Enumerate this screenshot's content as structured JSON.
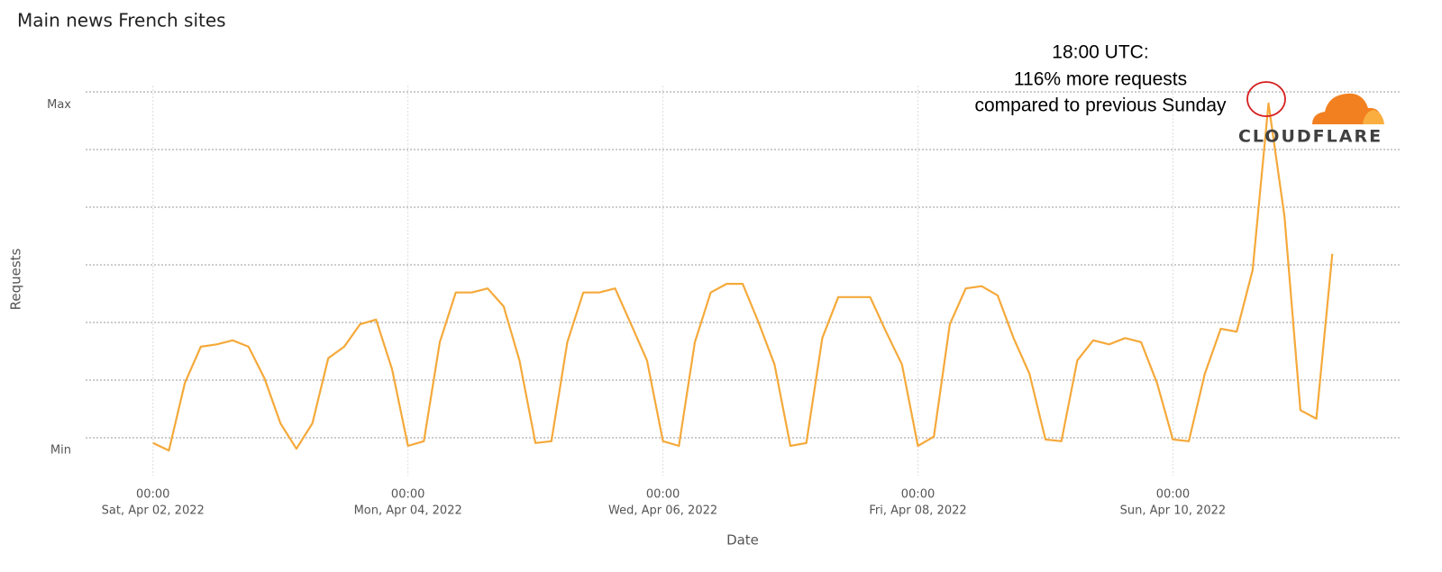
{
  "chart_data": {
    "type": "line",
    "title": "Main news French sites",
    "ylabel": "Requests",
    "xlabel": "Date",
    "annotation": [
      "18:00 UTC:",
      "116% more requests",
      "compared to previous Sunday"
    ],
    "logo_text": "CLOUDFLARE",
    "color": "#f5a93a",
    "grid": true,
    "xlim": [
      "2022-04-01T12:00",
      "2022-04-11T18:00"
    ],
    "xticks": [
      {
        "value": "2022-04-02T00:00",
        "label": [
          "00:00",
          "Sat, Apr 02, 2022"
        ]
      },
      {
        "value": "2022-04-04T00:00",
        "label": [
          "00:00",
          "Mon, Apr 04, 2022"
        ]
      },
      {
        "value": "2022-04-06T00:00",
        "label": [
          "00:00",
          "Wed, Apr 06, 2022"
        ]
      },
      {
        "value": "2022-04-08T00:00",
        "label": [
          "00:00",
          "Fri, Apr 08, 2022"
        ]
      },
      {
        "value": "2022-04-10T00:00",
        "label": [
          "00:00",
          "Sun, Apr 10, 2022"
        ]
      }
    ],
    "ylim": [
      -0.5,
      6.25
    ],
    "yticks": [
      {
        "value": -0.22,
        "label": "Min"
      },
      {
        "value": 5.77,
        "label": "Max"
      }
    ],
    "ygrid": [
      0,
      1,
      2,
      3,
      4,
      5,
      6
    ],
    "x": [
      "2022-04-02T00:00",
      "2022-04-02T03:00",
      "2022-04-02T06:00",
      "2022-04-02T09:00",
      "2022-04-02T12:00",
      "2022-04-02T15:00",
      "2022-04-02T18:00",
      "2022-04-02T21:00",
      "2022-04-03T00:00",
      "2022-04-03T03:00",
      "2022-04-03T06:00",
      "2022-04-03T09:00",
      "2022-04-03T12:00",
      "2022-04-03T15:00",
      "2022-04-03T18:00",
      "2022-04-03T21:00",
      "2022-04-04T00:00",
      "2022-04-04T03:00",
      "2022-04-04T06:00",
      "2022-04-04T09:00",
      "2022-04-04T12:00",
      "2022-04-04T15:00",
      "2022-04-04T18:00",
      "2022-04-04T21:00",
      "2022-04-05T00:00",
      "2022-04-05T03:00",
      "2022-04-05T06:00",
      "2022-04-05T09:00",
      "2022-04-05T12:00",
      "2022-04-05T15:00",
      "2022-04-05T18:00",
      "2022-04-05T21:00",
      "2022-04-06T00:00",
      "2022-04-06T03:00",
      "2022-04-06T06:00",
      "2022-04-06T09:00",
      "2022-04-06T12:00",
      "2022-04-06T15:00",
      "2022-04-06T18:00",
      "2022-04-06T21:00",
      "2022-04-07T00:00",
      "2022-04-07T03:00",
      "2022-04-07T06:00",
      "2022-04-07T09:00",
      "2022-04-07T12:00",
      "2022-04-07T15:00",
      "2022-04-07T18:00",
      "2022-04-07T21:00",
      "2022-04-08T00:00",
      "2022-04-08T03:00",
      "2022-04-08T06:00",
      "2022-04-08T09:00",
      "2022-04-08T12:00",
      "2022-04-08T15:00",
      "2022-04-08T18:00",
      "2022-04-08T21:00",
      "2022-04-09T00:00",
      "2022-04-09T03:00",
      "2022-04-09T06:00",
      "2022-04-09T09:00",
      "2022-04-09T12:00",
      "2022-04-09T15:00",
      "2022-04-09T18:00",
      "2022-04-09T21:00",
      "2022-04-10T00:00",
      "2022-04-10T03:00",
      "2022-04-10T06:00",
      "2022-04-10T09:00",
      "2022-04-10T12:00",
      "2022-04-10T15:00",
      "2022-04-10T18:00",
      "2022-04-10T21:00",
      "2022-04-11T00:00",
      "2022-04-11T03:00",
      "2022-04-11T06:00"
    ],
    "values": [
      -0.09,
      -0.22,
      0.95,
      1.58,
      1.62,
      1.69,
      1.58,
      1.03,
      0.25,
      -0.19,
      0.25,
      1.38,
      1.58,
      1.97,
      2.05,
      1.19,
      -0.14,
      -0.06,
      1.66,
      2.52,
      2.52,
      2.59,
      2.28,
      1.34,
      -0.09,
      -0.06,
      1.66,
      2.52,
      2.52,
      2.59,
      1.97,
      1.34,
      -0.06,
      -0.14,
      1.66,
      2.52,
      2.67,
      2.67,
      2.0,
      1.27,
      -0.14,
      -0.09,
      1.73,
      2.44,
      2.44,
      2.44,
      1.84,
      1.27,
      -0.14,
      0.02,
      1.97,
      2.59,
      2.63,
      2.47,
      1.73,
      1.11,
      -0.03,
      -0.06,
      1.34,
      1.69,
      1.62,
      1.73,
      1.66,
      0.95,
      -0.03,
      -0.06,
      1.11,
      1.89,
      1.84,
      2.91,
      5.8,
      3.84,
      0.48,
      0.33,
      3.19
    ]
  }
}
